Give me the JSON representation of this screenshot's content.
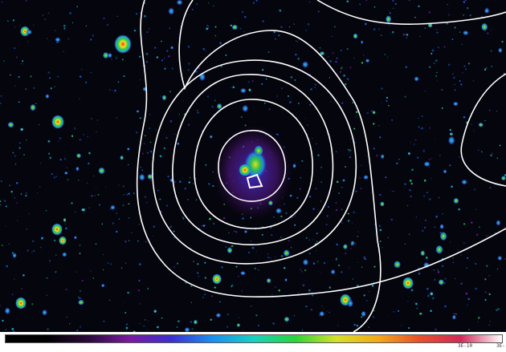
{
  "image": {
    "description_kind": "false-color astronomical image with white contour overlay",
    "background_color": "#05050d",
    "contour_color": "#ffffff"
  },
  "colorbar": {
    "colors": [
      "#000000",
      "#000000",
      "#2a0a3a",
      "#7a1aa0",
      "#3b2fd0",
      "#1a8ff0",
      "#19d0c0",
      "#2bd43a",
      "#d6e02a",
      "#f2a91a",
      "#e8502a",
      "#d02a5a",
      "#ffffff"
    ],
    "labels": {
      "mid": "3E-10",
      "end": "3E-"
    }
  }
}
